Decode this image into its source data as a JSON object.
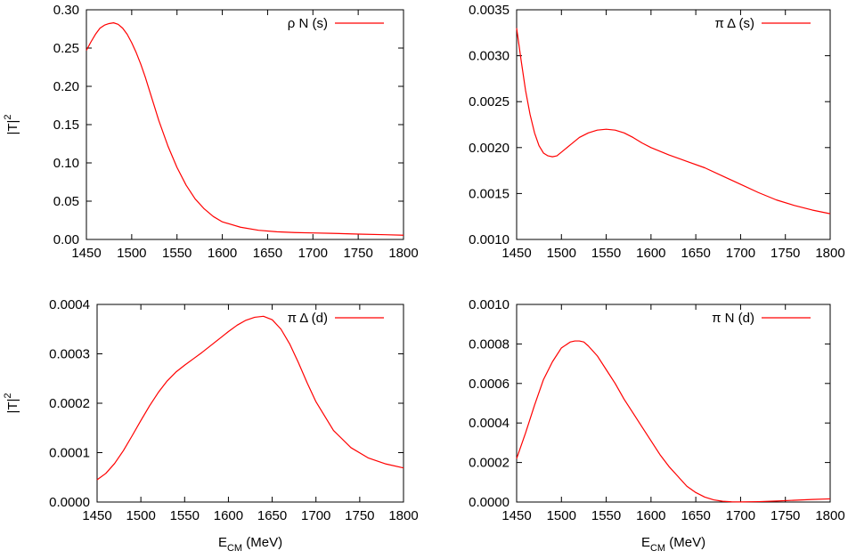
{
  "chart_data": [
    {
      "type": "line",
      "ylabel": "|T|",
      "ylabel_sup": "2",
      "xlabel": "",
      "xlim": [
        1450,
        1800
      ],
      "ylim": [
        0.0,
        0.3
      ],
      "xticks": [
        1450,
        1500,
        1550,
        1600,
        1650,
        1700,
        1750,
        1800
      ],
      "yticks": [
        "0.00",
        "0.05",
        "0.10",
        "0.15",
        "0.20",
        "0.25",
        "0.30"
      ],
      "legend_position": "top-right",
      "series": [
        {
          "name": "ρ N (s)",
          "color": "#ff0000",
          "x": [
            1450,
            1455,
            1460,
            1465,
            1470,
            1475,
            1480,
            1485,
            1490,
            1495,
            1500,
            1505,
            1510,
            1515,
            1520,
            1525,
            1530,
            1540,
            1550,
            1560,
            1570,
            1580,
            1590,
            1600,
            1620,
            1640,
            1660,
            1680,
            1700,
            1720,
            1750,
            1780,
            1800
          ],
          "y": [
            0.247,
            0.258,
            0.268,
            0.276,
            0.28,
            0.282,
            0.283,
            0.281,
            0.276,
            0.268,
            0.257,
            0.244,
            0.229,
            0.212,
            0.193,
            0.174,
            0.155,
            0.122,
            0.094,
            0.071,
            0.053,
            0.04,
            0.03,
            0.023,
            0.016,
            0.012,
            0.01,
            0.009,
            0.0085,
            0.008,
            0.007,
            0.0062,
            0.0055
          ]
        }
      ]
    },
    {
      "type": "line",
      "ylabel": "",
      "xlabel": "",
      "xlim": [
        1450,
        1800
      ],
      "ylim": [
        0.001,
        0.0035
      ],
      "xticks": [
        1450,
        1500,
        1550,
        1600,
        1650,
        1700,
        1750,
        1800
      ],
      "yticks": [
        "0.0010",
        "0.0015",
        "0.0020",
        "0.0025",
        "0.0030",
        "0.0035"
      ],
      "legend_position": "top-right",
      "series": [
        {
          "name": "π Δ (s)",
          "color": "#ff0000",
          "x": [
            1450,
            1455,
            1460,
            1465,
            1470,
            1475,
            1480,
            1485,
            1490,
            1495,
            1500,
            1510,
            1520,
            1530,
            1540,
            1550,
            1560,
            1570,
            1580,
            1590,
            1600,
            1620,
            1640,
            1660,
            1680,
            1700,
            1720,
            1740,
            1760,
            1780,
            1800
          ],
          "y": [
            0.0033,
            0.00295,
            0.00262,
            0.00236,
            0.00216,
            0.00202,
            0.00194,
            0.00191,
            0.0019,
            0.00191,
            0.00195,
            0.00203,
            0.00211,
            0.00216,
            0.00219,
            0.0022,
            0.00219,
            0.00216,
            0.00211,
            0.00205,
            0.002,
            0.00192,
            0.00185,
            0.00178,
            0.00169,
            0.0016,
            0.00151,
            0.00143,
            0.00137,
            0.00132,
            0.00128
          ]
        }
      ]
    },
    {
      "type": "line",
      "ylabel": "|T|",
      "ylabel_sup": "2",
      "xlabel": "E",
      "xlabel_sub": "CM",
      "xlabel_unit": " (MeV)",
      "xlim": [
        1450,
        1800
      ],
      "ylim": [
        0.0,
        0.0004
      ],
      "xticks": [
        1450,
        1500,
        1550,
        1600,
        1650,
        1700,
        1750,
        1800
      ],
      "yticks": [
        "0.0000",
        "0.0001",
        "0.0002",
        "0.0003",
        "0.0004"
      ],
      "legend_position": "top-right",
      "series": [
        {
          "name": "π Δ (d)",
          "color": "#ff0000",
          "x": [
            1450,
            1460,
            1470,
            1480,
            1490,
            1500,
            1510,
            1520,
            1530,
            1540,
            1550,
            1560,
            1570,
            1580,
            1590,
            1600,
            1610,
            1620,
            1630,
            1640,
            1650,
            1660,
            1670,
            1680,
            1690,
            1700,
            1720,
            1740,
            1760,
            1780,
            1800
          ],
          "y": [
            4.5e-05,
            5.8e-05,
            7.8e-05,
            0.000104,
            0.000134,
            0.000165,
            0.000195,
            0.000222,
            0.000245,
            0.000263,
            0.000277,
            0.00029,
            0.000303,
            0.000317,
            0.000331,
            0.000345,
            0.000358,
            0.000368,
            0.000374,
            0.000376,
            0.000369,
            0.00035,
            0.00032,
            0.000282,
            0.000241,
            0.000203,
            0.000145,
            0.00011,
            8.9e-05,
            7.7e-05,
            6.9e-05
          ]
        }
      ]
    },
    {
      "type": "line",
      "ylabel": "",
      "xlabel": "E",
      "xlabel_sub": "CM",
      "xlabel_unit": " (MeV)",
      "xlim": [
        1450,
        1800
      ],
      "ylim": [
        0.0,
        0.001
      ],
      "xticks": [
        1450,
        1500,
        1550,
        1600,
        1650,
        1700,
        1750,
        1800
      ],
      "yticks": [
        "0.0000",
        "0.0002",
        "0.0004",
        "0.0006",
        "0.0008",
        "0.0010"
      ],
      "legend_position": "top-right",
      "series": [
        {
          "name": "π N (d)",
          "color": "#ff0000",
          "x": [
            1450,
            1460,
            1470,
            1480,
            1490,
            1500,
            1510,
            1515,
            1520,
            1525,
            1530,
            1540,
            1550,
            1560,
            1570,
            1580,
            1590,
            1600,
            1610,
            1620,
            1630,
            1640,
            1650,
            1660,
            1670,
            1680,
            1690,
            1700,
            1720,
            1740,
            1760,
            1780,
            1800
          ],
          "y": [
            0.00022,
            0.00035,
            0.00049,
            0.00062,
            0.00071,
            0.00078,
            0.00081,
            0.000815,
            0.000815,
            0.00081,
            0.00079,
            0.00074,
            0.00067,
            0.0006,
            0.00052,
            0.00045,
            0.00038,
            0.00031,
            0.00024,
            0.00018,
            0.00013,
            8e-05,
            4.8e-05,
            2.5e-05,
            1.1e-05,
            4e-06,
            1e-06,
            5e-07,
            2e-06,
            5e-06,
            9e-06,
            1.3e-05,
            1.6e-05
          ]
        }
      ]
    }
  ]
}
